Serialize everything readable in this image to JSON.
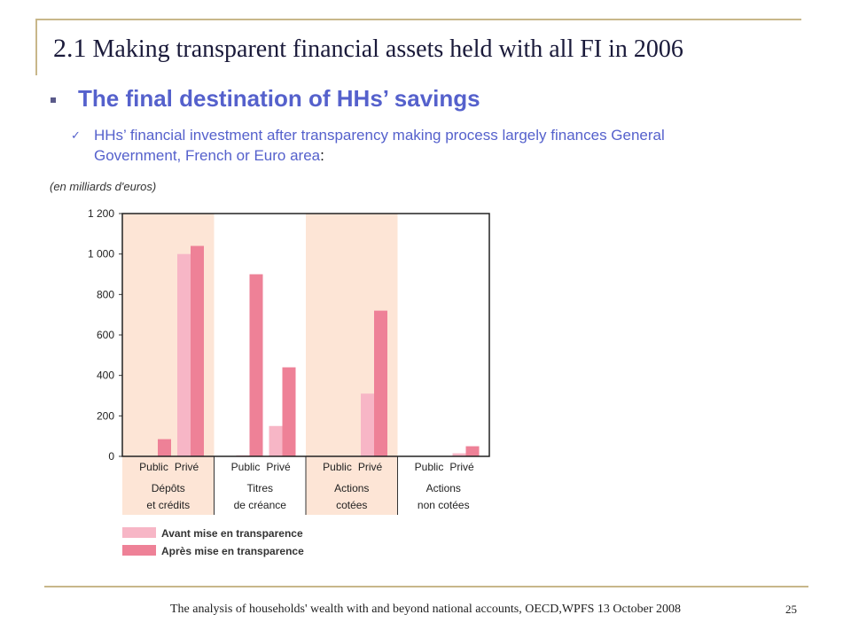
{
  "slide": {
    "title_number": "2.1",
    "title_text": "Making transparent financial assets held with all FI in 2006",
    "subheading": "The final destination of HHs’ savings",
    "body": "HHs’ financial investment after transparency making process largely finances General Government, French or Euro area",
    "body_colon": ":",
    "footer": "The analysis of households' wealth with and beyond national accounts, OECD,WPFS 13 October 2008",
    "page_number": "25"
  },
  "colors": {
    "before": "#f7b6c6",
    "after": "#ee8197",
    "band": "#fde5d6",
    "accent_text": "#5561cc"
  },
  "chart_data": {
    "type": "bar",
    "unit_label": "(en milliards d'euros)",
    "ylim": [
      0,
      1200
    ],
    "yticks": [
      0,
      200,
      400,
      600,
      800,
      1000,
      1200
    ],
    "ytick_labels": [
      "0",
      "200",
      "400",
      "600",
      "800",
      "1 000",
      "1 200"
    ],
    "groups": [
      {
        "label_lines": [
          "Dépôts",
          "et crédits"
        ],
        "shaded": true
      },
      {
        "label_lines": [
          "Titres",
          "de créance"
        ],
        "shaded": false
      },
      {
        "label_lines": [
          "Actions",
          "cotées"
        ],
        "shaded": true
      },
      {
        "label_lines": [
          "Actions",
          "non cotées"
        ],
        "shaded": false
      }
    ],
    "subcategories": [
      "Public",
      "Privé"
    ],
    "series": [
      {
        "name": "Avant mise en transparence",
        "values": [
          [
            0,
            1000
          ],
          [
            5,
            150
          ],
          [
            0,
            310
          ],
          [
            0,
            15
          ]
        ]
      },
      {
        "name": "Après mise en transparence",
        "values": [
          [
            85,
            1040
          ],
          [
            900,
            440
          ],
          [
            0,
            720
          ],
          [
            0,
            50
          ]
        ]
      }
    ],
    "legend_position": "bottom-left"
  }
}
